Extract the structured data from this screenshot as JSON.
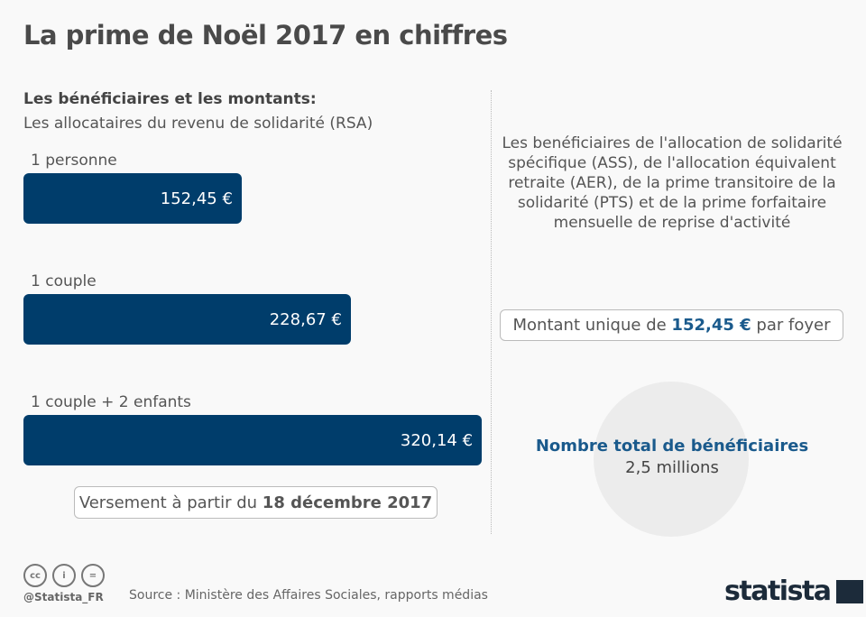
{
  "title": "La prime de Noël 2017 en chiffres",
  "left": {
    "heading": "Les bénéficiaires et les montants:",
    "subheading": "Les allocataires du revenu de solidarité (RSA)",
    "versement": {
      "prefix": "Versement à partir du ",
      "bold": "18 décembre 2017"
    }
  },
  "chart_data": {
    "type": "bar",
    "orientation": "horizontal",
    "categories": [
      "1 personne",
      "1 couple",
      "1 couple + 2 enfants"
    ],
    "values": [
      152.45,
      228.67,
      320.14
    ],
    "labels": [
      "152,45 €",
      "228,67 €",
      "320,14 €"
    ],
    "unit": "€",
    "color": "#003d6b"
  },
  "right": {
    "description": "Les benéficiaires de l'allocation de solidarité spécifique (ASS), de l'allocation équivalent retraite (AER), de la prime transitoire de la solidarité (PTS) et de la prime forfaitaire mensuelle de reprise d'activité",
    "montant": {
      "prefix": "Montant unique de ",
      "value": "152,45 €",
      "suffix": " par foyer"
    },
    "total": {
      "label": "Nombre total de bénéficiaires",
      "value": "2,5 millions"
    },
    "accent": "#1a5a8c"
  },
  "footer": {
    "handle": "@Statista_FR",
    "source": "Source : Ministère des Affaires Sociales, rapports médias",
    "logo": "statista",
    "icons": [
      "cc-icon",
      "by-icon",
      "nd-icon"
    ]
  }
}
